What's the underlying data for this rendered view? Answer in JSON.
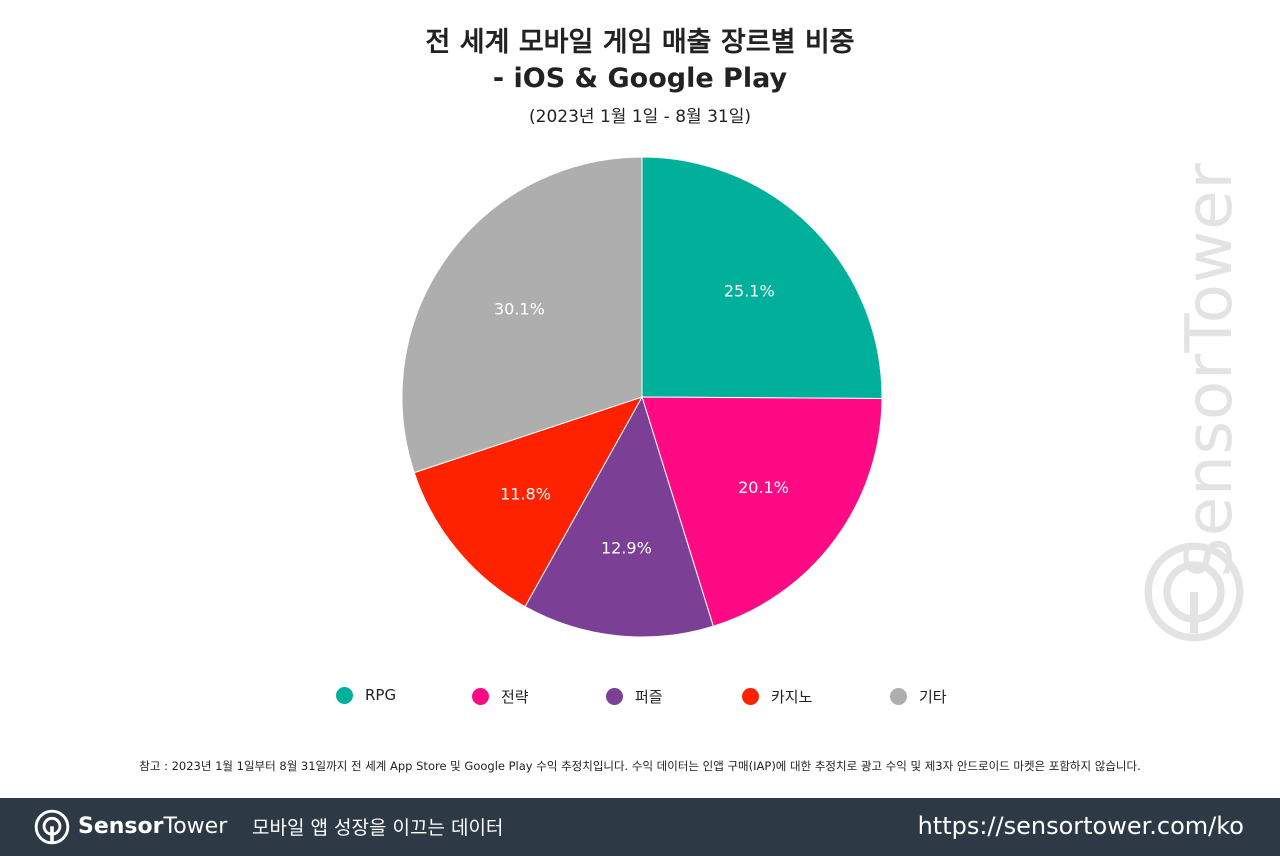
{
  "title_line1": "전 세계 모바일 게임 매출 장르별 비중",
  "title_line2": "- iOS & Google Play",
  "subtitle": "(2023년 1월 1일 - 8월 31일)",
  "chart_data": {
    "type": "pie",
    "title": "전 세계 모바일 게임 매출 장르별 비중 - iOS & Google Play",
    "subtitle": "(2023년 1월 1일 - 8월 31일)",
    "unit": "%",
    "legend_position": "bottom",
    "slices": [
      {
        "label": "RPG",
        "value": 25.1,
        "display": "25.1%",
        "color": "#00b09b"
      },
      {
        "label": "전략",
        "value": 20.1,
        "display": "20.1%",
        "color": "#ff0a85"
      },
      {
        "label": "퍼즐",
        "value": 12.9,
        "display": "12.9%",
        "color": "#7b3f96"
      },
      {
        "label": "카지노",
        "value": 11.8,
        "display": "11.8%",
        "color": "#ff2200"
      },
      {
        "label": "기타",
        "value": 30.1,
        "display": "30.1%",
        "color": "#aeaeae"
      }
    ]
  },
  "note": "참고 : 2023년 1월 1일부터 8월 31일까지 전 세계 App Store 및 Google Play 수익 추정치입니다. 수익 데이터는 인앱 구매(IAP)에 대한 추정치로 광고 수익 및 제3자 안드로이드 마켓은 포함하지 않습니다.",
  "watermark": "SensorTower",
  "footer": {
    "brand_bold": "Sensor",
    "brand_regular": "Tower",
    "tagline": "모바일 앱 성장을 이끄는 데이터",
    "url": "https://sensortower.com/ko",
    "background": "#2d3a45"
  }
}
